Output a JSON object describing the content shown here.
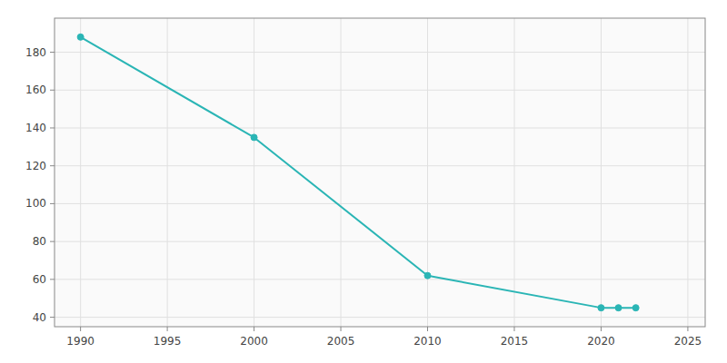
{
  "chart_data": {
    "type": "line",
    "x": [
      1990,
      2000,
      2010,
      2020,
      2021,
      2022
    ],
    "values": [
      188,
      135,
      62,
      45,
      45,
      45
    ],
    "color": "#2ab5b5",
    "marker": "circle",
    "xlim": [
      1988.5,
      2026
    ],
    "ylim": [
      35,
      198
    ],
    "xticks": [
      1990,
      1995,
      2000,
      2005,
      2010,
      2015,
      2020,
      2025
    ],
    "yticks": [
      40,
      60,
      80,
      100,
      120,
      140,
      160,
      180
    ],
    "grid": true
  }
}
